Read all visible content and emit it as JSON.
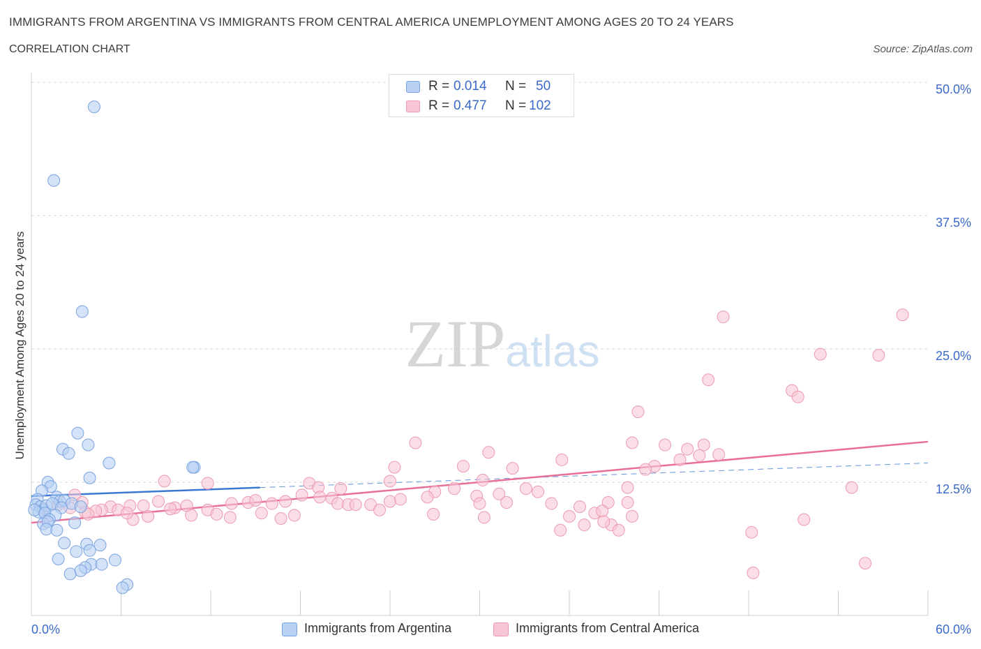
{
  "header": {
    "title": "IMMIGRANTS FROM ARGENTINA VS IMMIGRANTS FROM CENTRAL AMERICA UNEMPLOYMENT AMONG AGES 20 TO 24 YEARS",
    "subtitle": "CORRELATION CHART",
    "source": "Source: ZipAtlas.com"
  },
  "legend": {
    "rows": [
      {
        "r_label": "R =",
        "r_value": "0.014",
        "n_label": "N =",
        "n_value": "50"
      },
      {
        "r_label": "R =",
        "r_value": "0.477",
        "n_label": "N =",
        "n_value": "102"
      }
    ],
    "bottom": [
      "Immigrants from Argentina",
      "Immigrants from Central America"
    ]
  },
  "colors": {
    "series_a_fill": "#b8d0f4",
    "series_a_stroke": "#7aa3e0",
    "series_a_line": "#3a78d4",
    "series_b_fill": "#f7c6d4",
    "series_b_stroke": "#ec9ab2",
    "series_b_line": "#e86f98",
    "axis_label": "#3a6ac9",
    "grid": "#d9d9d9"
  },
  "chart_data": {
    "type": "scatter",
    "title": "IMMIGRANTS FROM ARGENTINA VS IMMIGRANTS FROM CENTRAL AMERICA UNEMPLOYMENT AMONG AGES 20 TO 24 YEARS",
    "xlabel": "",
    "ylabel": "Unemployment Among Ages 20 to 24 years",
    "xlim": [
      0,
      60
    ],
    "ylim": [
      0,
      50
    ],
    "x_tick_labels": [
      "0.0%",
      "60.0%"
    ],
    "y_ticks": [
      12.5,
      25.0,
      37.5,
      50.0
    ],
    "y_tick_labels": [
      "12.5%",
      "25.0%",
      "37.5%",
      "50.0%"
    ],
    "grid": true,
    "watermark": "ZIPatlas",
    "series": [
      {
        "name": "Immigrants from Argentina",
        "R": 0.014,
        "N": 50,
        "trend": {
          "x": [
            0,
            15.3
          ],
          "y": [
            11.2,
            12.0
          ],
          "dashed_to": [
            60,
            14.3
          ]
        },
        "points": [
          [
            4.2,
            47.7
          ],
          [
            1.5,
            40.8
          ],
          [
            3.4,
            28.5
          ],
          [
            3.1,
            17.1
          ],
          [
            3.8,
            16.0
          ],
          [
            2.1,
            15.6
          ],
          [
            2.5,
            15.2
          ],
          [
            5.2,
            14.3
          ],
          [
            10.9,
            13.9
          ],
          [
            10.8,
            13.9
          ],
          [
            3.9,
            12.9
          ],
          [
            1.1,
            12.5
          ],
          [
            1.3,
            12.1
          ],
          [
            0.7,
            11.7
          ],
          [
            1.7,
            11.1
          ],
          [
            1.9,
            10.7
          ],
          [
            2.2,
            10.8
          ],
          [
            0.4,
            10.9
          ],
          [
            0.3,
            10.4
          ],
          [
            0.6,
            10.2
          ],
          [
            0.8,
            9.9
          ],
          [
            0.5,
            9.7
          ],
          [
            0.2,
            9.9
          ],
          [
            1.0,
            10.3
          ],
          [
            1.4,
            10.5
          ],
          [
            2.7,
            10.5
          ],
          [
            3.3,
            10.2
          ],
          [
            2.0,
            10.1
          ],
          [
            0.9,
            9.6
          ],
          [
            1.6,
            9.4
          ],
          [
            1.2,
            9.0
          ],
          [
            0.8,
            8.6
          ],
          [
            1.1,
            8.8
          ],
          [
            2.9,
            8.7
          ],
          [
            1.0,
            8.1
          ],
          [
            1.7,
            8.0
          ],
          [
            2.2,
            6.8
          ],
          [
            3.7,
            6.7
          ],
          [
            4.6,
            6.6
          ],
          [
            3.0,
            6.0
          ],
          [
            3.9,
            6.1
          ],
          [
            1.8,
            5.3
          ],
          [
            4.0,
            4.8
          ],
          [
            4.7,
            4.8
          ],
          [
            5.6,
            5.2
          ],
          [
            3.6,
            4.5
          ],
          [
            2.6,
            3.9
          ],
          [
            3.3,
            4.2
          ],
          [
            6.4,
            2.9
          ],
          [
            6.1,
            2.6
          ]
        ]
      },
      {
        "name": "Immigrants from Central America",
        "R": 0.477,
        "N": 102,
        "trend": {
          "x": [
            0,
            60
          ],
          "y": [
            8.7,
            16.3
          ]
        },
        "points": [
          [
            58.3,
            28.2
          ],
          [
            46.3,
            28.0
          ],
          [
            52.8,
            24.5
          ],
          [
            56.7,
            24.4
          ],
          [
            45.3,
            22.1
          ],
          [
            50.9,
            21.1
          ],
          [
            51.3,
            20.5
          ],
          [
            40.6,
            19.1
          ],
          [
            25.7,
            16.2
          ],
          [
            40.2,
            16.2
          ],
          [
            42.4,
            16.0
          ],
          [
            45.0,
            16.0
          ],
          [
            43.9,
            15.6
          ],
          [
            30.6,
            15.3
          ],
          [
            44.7,
            15.0
          ],
          [
            46.0,
            15.1
          ],
          [
            35.5,
            14.6
          ],
          [
            43.4,
            14.6
          ],
          [
            28.9,
            14.0
          ],
          [
            24.3,
            13.9
          ],
          [
            32.2,
            13.8
          ],
          [
            41.7,
            14.0
          ],
          [
            41.1,
            13.7
          ],
          [
            8.9,
            12.6
          ],
          [
            11.8,
            12.4
          ],
          [
            18.6,
            12.4
          ],
          [
            24.0,
            12.6
          ],
          [
            30.2,
            12.7
          ],
          [
            19.2,
            12.0
          ],
          [
            20.7,
            11.9
          ],
          [
            28.3,
            11.9
          ],
          [
            39.9,
            12.0
          ],
          [
            54.9,
            12.0
          ],
          [
            27.0,
            11.6
          ],
          [
            31.3,
            11.4
          ],
          [
            33.1,
            11.9
          ],
          [
            33.9,
            11.6
          ],
          [
            29.8,
            11.2
          ],
          [
            19.3,
            11.1
          ],
          [
            18.1,
            11.3
          ],
          [
            20.1,
            11.0
          ],
          [
            24.0,
            10.7
          ],
          [
            26.5,
            11.1
          ],
          [
            24.7,
            10.9
          ],
          [
            2.9,
            11.3
          ],
          [
            3.4,
            10.6
          ],
          [
            6.6,
            10.3
          ],
          [
            8.5,
            10.7
          ],
          [
            14.5,
            10.6
          ],
          [
            15.0,
            10.8
          ],
          [
            16.1,
            10.5
          ],
          [
            17.0,
            10.7
          ],
          [
            20.5,
            10.5
          ],
          [
            21.2,
            10.4
          ],
          [
            21.7,
            10.4
          ],
          [
            22.7,
            10.4
          ],
          [
            30.0,
            10.5
          ],
          [
            31.8,
            10.6
          ],
          [
            34.8,
            10.5
          ],
          [
            38.6,
            10.6
          ],
          [
            39.9,
            10.6
          ],
          [
            36.7,
            10.2
          ],
          [
            13.4,
            10.5
          ],
          [
            10.4,
            10.3
          ],
          [
            9.6,
            10.1
          ],
          [
            7.5,
            10.3
          ],
          [
            5.3,
            10.2
          ],
          [
            0.8,
            10.0
          ],
          [
            1.8,
            10.4
          ],
          [
            2.6,
            10.1
          ],
          [
            5.8,
            9.9
          ],
          [
            11.8,
            9.9
          ],
          [
            9.3,
            10.0
          ],
          [
            4.7,
            9.9
          ],
          [
            4.3,
            9.8
          ],
          [
            3.6,
            9.7
          ],
          [
            12.4,
            9.5
          ],
          [
            15.4,
            9.6
          ],
          [
            17.6,
            9.4
          ],
          [
            23.3,
            9.9
          ],
          [
            26.9,
            9.5
          ],
          [
            30.3,
            9.2
          ],
          [
            36.0,
            9.3
          ],
          [
            40.2,
            9.3
          ],
          [
            37.7,
            9.6
          ],
          [
            38.2,
            9.8
          ],
          [
            3.8,
            9.5
          ],
          [
            13.3,
            9.2
          ],
          [
            16.7,
            9.1
          ],
          [
            6.8,
            9.0
          ],
          [
            7.8,
            9.3
          ],
          [
            37.0,
            8.5
          ],
          [
            35.4,
            8.0
          ],
          [
            38.8,
            8.5
          ],
          [
            39.3,
            8.0
          ],
          [
            38.3,
            8.8
          ],
          [
            51.7,
            9.0
          ],
          [
            48.2,
            7.8
          ],
          [
            55.8,
            4.9
          ],
          [
            48.3,
            4.0
          ],
          [
            10.7,
            9.4
          ],
          [
            6.4,
            9.6
          ]
        ]
      }
    ]
  }
}
